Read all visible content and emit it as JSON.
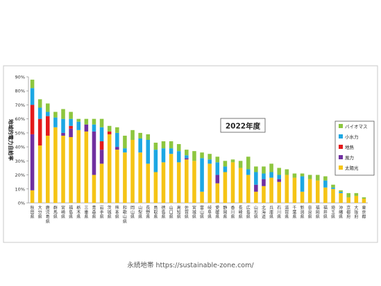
{
  "chart_data": {
    "type": "bar",
    "stacked": true,
    "title": "2022年度",
    "ylabel": "地域的電力自給率",
    "xlabel": "",
    "ylim": [
      0,
      90
    ],
    "yticks": [
      0,
      10,
      20,
      30,
      40,
      50,
      60,
      70,
      80,
      90
    ],
    "ytick_suffix": "%",
    "grid": false,
    "legend_position": "right",
    "categories": [
      "秋田県",
      "大分県",
      "鹿児島県",
      "群馬県",
      "宮崎県",
      "福島県",
      "栃木県",
      "三重県",
      "青森県",
      "岩手県",
      "茨城県",
      "熊本県",
      "和歌山県",
      "岡山県",
      "山梨県",
      "長野県",
      "鳥取県",
      "徳島県",
      "山口県",
      "高知県",
      "佐賀県",
      "宮城県",
      "富山県",
      "岐阜県",
      "愛媛県",
      "静岡県",
      "香川県",
      "長崎県",
      "広島県",
      "山形県",
      "北海道",
      "兵庫県",
      "石川県",
      "滋賀県",
      "千葉県",
      "新潟県",
      "奈良県",
      "福岡県",
      "福井県",
      "埼玉県",
      "沖縄県",
      "京都府",
      "大阪府",
      "東京都"
    ],
    "series": [
      {
        "name": "太陽光",
        "color": "#F5C416",
        "values": [
          9,
          41,
          48,
          54,
          48,
          47,
          52,
          51,
          20,
          28,
          49,
          38,
          36,
          45,
          36,
          28,
          22,
          29,
          35,
          29,
          31,
          30,
          8,
          28,
          14,
          22,
          29,
          25,
          20,
          8,
          12,
          18,
          15,
          20,
          18,
          8,
          17,
          16,
          11,
          10,
          7,
          4,
          5,
          3
        ]
      },
      {
        "name": "風力",
        "color": "#7030A0",
        "values": [
          40,
          0,
          0,
          0,
          2,
          6,
          0,
          5,
          31,
          10,
          0,
          2,
          0,
          0,
          0,
          0,
          0,
          0,
          0,
          0,
          1,
          0,
          0,
          0,
          6,
          0,
          0,
          0,
          0,
          5,
          5,
          0,
          2,
          0,
          0,
          0,
          0,
          0,
          0,
          0,
          0,
          0,
          0,
          0
        ]
      },
      {
        "name": "地熱",
        "color": "#E31A1C",
        "values": [
          21,
          19,
          14,
          0,
          0,
          2,
          0,
          0,
          0,
          6,
          2,
          0,
          0,
          0,
          0,
          0,
          0,
          0,
          0,
          0,
          0,
          0,
          0,
          0,
          0,
          0,
          0,
          0,
          0,
          0,
          0,
          0,
          0,
          0,
          0,
          0,
          0,
          0,
          0,
          0,
          0,
          0,
          0,
          0
        ]
      },
      {
        "name": "小水力",
        "color": "#1DA7E3",
        "values": [
          12,
          8,
          3,
          7,
          10,
          5,
          6,
          0,
          5,
          10,
          0,
          10,
          3,
          0,
          10,
          17,
          16,
          10,
          4,
          8,
          2,
          0,
          24,
          3,
          9,
          4,
          0,
          0,
          4,
          9,
          4,
          4,
          3,
          0,
          0,
          11,
          0,
          0,
          5,
          1,
          1,
          0,
          0,
          0
        ]
      },
      {
        "name": "バイオマス",
        "color": "#8DC63F",
        "values": [
          6,
          6,
          6,
          4,
          7,
          5,
          2,
          4,
          4,
          6,
          4,
          4,
          9,
          7,
          4,
          4,
          5,
          5,
          5,
          5,
          4,
          7,
          4,
          4,
          4,
          4,
          2,
          5,
          9,
          4,
          5,
          6,
          5,
          4,
          3,
          2,
          3,
          4,
          3,
          2,
          1,
          3,
          2,
          1
        ]
      }
    ]
  },
  "footer": {
    "text": "永続地帯 https://sustainable-zone.com/"
  }
}
